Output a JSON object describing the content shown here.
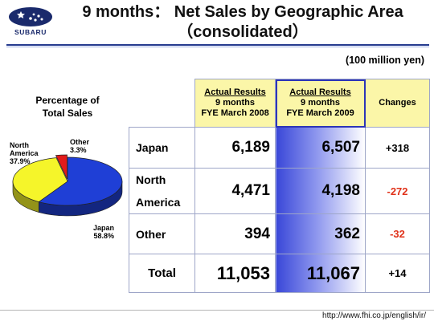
{
  "header": {
    "logo_text": "SUBARU",
    "title": "9 months： Net Sales by Geographic Area",
    "subtitle": "（consolidated）"
  },
  "unit": "(100 million yen)",
  "pie": {
    "title_line1": "Percentage of",
    "title_line2": "Total Sales",
    "labels": {
      "japan_name": "Japan",
      "japan_pct": "58.8%",
      "na_name1": "North",
      "na_name2": "America",
      "na_pct": "37.9%",
      "other_name": "Other",
      "other_pct": "3.3%"
    },
    "colors": {
      "japan": "#1f3fd6",
      "north_america": "#f5f52a",
      "other": "#e21b1b"
    }
  },
  "table": {
    "headers": {
      "col2_l1": "Actual Results",
      "col2_l2": "9 months",
      "col2_l3": "FYE March 2008",
      "col3_l1": "Actual Results",
      "col3_l2": "9 months",
      "col3_l3": "FYE March 2009",
      "col4": "Changes"
    },
    "rows": [
      {
        "label": "Japan",
        "v2008": "6,189",
        "v2009": "6,507",
        "change": "+318"
      },
      {
        "label1": "North",
        "label2": "America",
        "v2008": "4,471",
        "v2009": "4,198",
        "change": "-272"
      },
      {
        "label": "Other",
        "v2008": "394",
        "v2009": "362",
        "change": "-32"
      },
      {
        "label": "Total",
        "v2008": "11,053",
        "v2009": "11,067",
        "change": "+14"
      }
    ]
  },
  "footer": {
    "url": "http://www.fhi.co.jp/english/ir/"
  },
  "chart_data": {
    "type": "pie",
    "title": "Percentage of Total Sales",
    "categories": [
      "Japan",
      "North America",
      "Other"
    ],
    "values": [
      58.8,
      37.9,
      3.3
    ]
  }
}
